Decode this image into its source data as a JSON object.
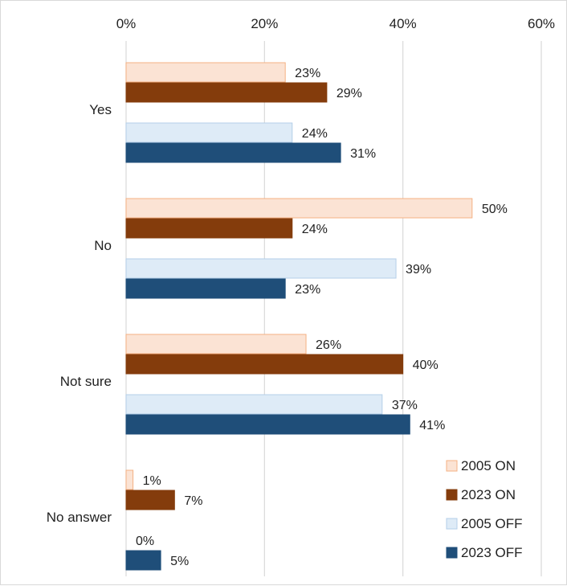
{
  "chart_data": {
    "type": "bar",
    "orientation": "horizontal",
    "categories": [
      "Yes",
      "No",
      "Not sure",
      "No answer"
    ],
    "series": [
      {
        "name": "2005 ON",
        "values": [
          23,
          50,
          26,
          1
        ],
        "color": "#fbe3d4",
        "stroke": "#f4b183"
      },
      {
        "name": "2023 ON",
        "values": [
          29,
          24,
          40,
          7
        ],
        "color": "#843c0c",
        "stroke": "#843c0c"
      },
      {
        "name": "2005 OFF",
        "values": [
          24,
          39,
          37,
          0
        ],
        "color": "#deebf7",
        "stroke": "#b4cfe8"
      },
      {
        "name": "2023 OFF",
        "values": [
          31,
          23,
          41,
          5
        ],
        "color": "#1f4e79",
        "stroke": "#1f4e79"
      }
    ],
    "xlim": [
      0,
      60
    ],
    "xticks": [
      "0%",
      "20%",
      "40%",
      "60%"
    ],
    "xtick_values": [
      0,
      20,
      40,
      60
    ],
    "value_suffix": "%",
    "grid": true,
    "legend_position": "bottom-right",
    "title": "",
    "xlabel": "",
    "ylabel": ""
  }
}
